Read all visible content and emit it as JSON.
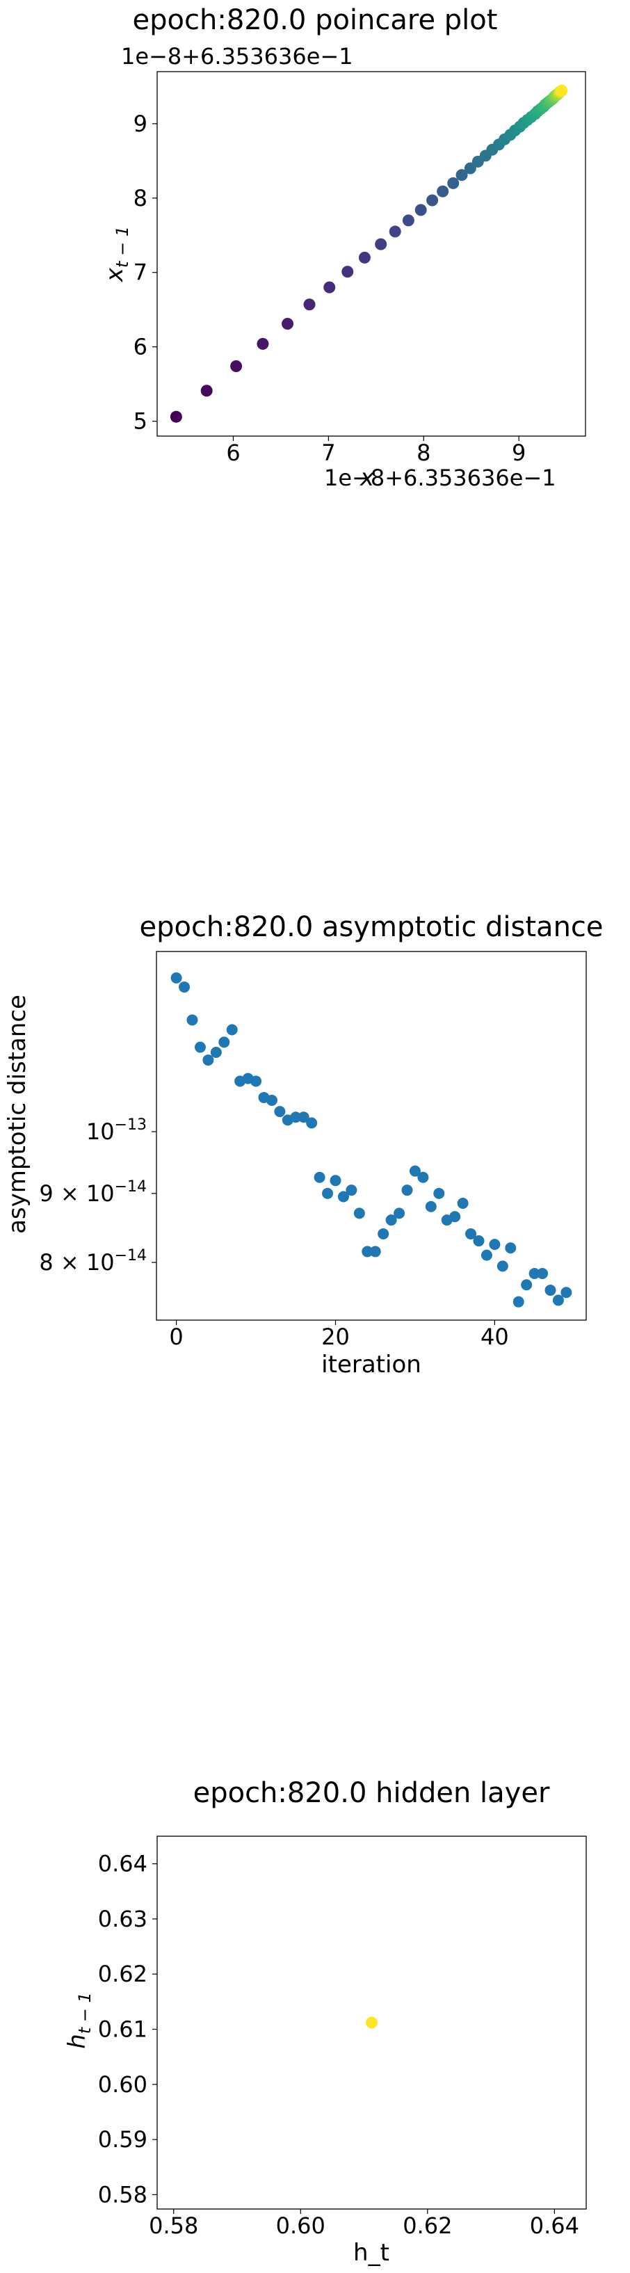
{
  "chart_data": [
    {
      "type": "scatter",
      "title": "epoch:820.0 poincare plot",
      "xlabel": "x_t",
      "ylabel": "x_{t-1}",
      "offset_text_x": "1e−8+6.353636e−1",
      "offset_text_y": "1e−8+6.353636e−1",
      "xlim": [
        5.2,
        9.7
      ],
      "ylim": [
        4.8,
        9.7
      ],
      "xticks": [
        6,
        7,
        8,
        9
      ],
      "xtick_labels": [
        "6",
        "7",
        "8",
        "9"
      ],
      "yticks": [
        5,
        6,
        7,
        8,
        9
      ],
      "ytick_labels": [
        "5",
        "6",
        "7",
        "8",
        "9"
      ],
      "colormap": "viridis",
      "grid": false,
      "points": [
        [
          5.4,
          5.06
        ],
        [
          5.72,
          5.41
        ],
        [
          6.03,
          5.74
        ],
        [
          6.31,
          6.04
        ],
        [
          6.57,
          6.31
        ],
        [
          6.8,
          6.57
        ],
        [
          7.01,
          6.8
        ],
        [
          7.2,
          7.01
        ],
        [
          7.38,
          7.2
        ],
        [
          7.55,
          7.38
        ],
        [
          7.7,
          7.55
        ],
        [
          7.84,
          7.7
        ],
        [
          7.97,
          7.84
        ],
        [
          8.09,
          7.97
        ],
        [
          8.2,
          8.09
        ],
        [
          8.31,
          8.2
        ],
        [
          8.4,
          8.31
        ],
        [
          8.49,
          8.4
        ],
        [
          8.57,
          8.49
        ],
        [
          8.65,
          8.57
        ],
        [
          8.72,
          8.65
        ],
        [
          8.79,
          8.72
        ],
        [
          8.85,
          8.79
        ],
        [
          8.91,
          8.85
        ],
        [
          8.96,
          8.91
        ],
        [
          9.01,
          8.96
        ],
        [
          9.05,
          9.01
        ],
        [
          9.09,
          9.05
        ],
        [
          9.13,
          9.09
        ],
        [
          9.17,
          9.13
        ],
        [
          9.2,
          9.17
        ],
        [
          9.23,
          9.2
        ],
        [
          9.26,
          9.23
        ],
        [
          9.28,
          9.26
        ],
        [
          9.3,
          9.28
        ],
        [
          9.32,
          9.3
        ],
        [
          9.34,
          9.32
        ],
        [
          9.36,
          9.34
        ],
        [
          9.37,
          9.36
        ],
        [
          9.38,
          9.37
        ],
        [
          9.39,
          9.38
        ],
        [
          9.4,
          9.39
        ],
        [
          9.41,
          9.4
        ],
        [
          9.42,
          9.41
        ],
        [
          9.425,
          9.42
        ],
        [
          9.43,
          9.425
        ],
        [
          9.435,
          9.43
        ],
        [
          9.44,
          9.435
        ],
        [
          9.445,
          9.44
        ],
        [
          9.45,
          9.445
        ]
      ]
    },
    {
      "type": "scatter",
      "title": "epoch:820.0 asymptotic distance",
      "xlabel": "iteration",
      "ylabel": "asymptotic distance",
      "yscale": "log",
      "xlim": [
        -2.5,
        51.5
      ],
      "ylim": [
        7.25e-14,
        1.36e-13
      ],
      "xticks": [
        0,
        20,
        40
      ],
      "xtick_labels": [
        "0",
        "20",
        "40"
      ],
      "yticks": [
        1e-13,
        9e-14,
        8e-14
      ],
      "ytick_labels": [
        {
          "base": "10",
          "exp": "−13"
        },
        {
          "base": "9 × 10",
          "exp": "−14"
        },
        {
          "base": "8 × 10",
          "exp": "−14"
        }
      ],
      "color": "#1f77b4",
      "grid": false,
      "x": [
        0,
        1,
        2,
        3,
        4,
        5,
        6,
        7,
        8,
        9,
        10,
        11,
        12,
        13,
        14,
        15,
        16,
        17,
        18,
        19,
        20,
        21,
        22,
        23,
        24,
        25,
        26,
        27,
        28,
        29,
        30,
        31,
        32,
        33,
        34,
        35,
        36,
        37,
        38,
        39,
        40,
        41,
        42,
        43,
        44,
        45,
        46,
        47,
        48,
        49
      ],
      "y": [
        1.3e-13,
        1.28e-13,
        1.21e-13,
        1.155e-13,
        1.13e-13,
        1.145e-13,
        1.165e-13,
        1.19e-13,
        1.09e-13,
        1.095e-13,
        1.09e-13,
        1.06e-13,
        1.055e-13,
        1.035e-13,
        1.02e-13,
        1.025e-13,
        1.025e-13,
        1.015e-13,
        9.25e-14,
        9e-14,
        9.2e-14,
        8.95e-14,
        9.05e-14,
        8.7e-14,
        8.15e-14,
        8.15e-14,
        8.4e-14,
        8.6e-14,
        8.7e-14,
        9.05e-14,
        9.35e-14,
        9.25e-14,
        8.8e-14,
        9e-14,
        8.6e-14,
        8.65e-14,
        8.85e-14,
        8.4e-14,
        8.3e-14,
        8.1e-14,
        8.25e-14,
        7.95e-14,
        8.2e-14,
        7.48e-14,
        7.7e-14,
        7.85e-14,
        7.85e-14,
        7.63e-14,
        7.5e-14,
        7.6e-14
      ]
    },
    {
      "type": "scatter",
      "title": "epoch:820.0 hidden layer",
      "xlabel": "h_t",
      "ylabel": "h_{t-1}",
      "xlim": [
        0.5774,
        0.645
      ],
      "ylim": [
        0.5774,
        0.645
      ],
      "xticks": [
        0.58,
        0.6,
        0.62,
        0.64
      ],
      "xtick_labels": [
        "0.58",
        "0.60",
        "0.62",
        "0.64"
      ],
      "yticks": [
        0.58,
        0.59,
        0.6,
        0.61,
        0.62,
        0.63,
        0.64
      ],
      "ytick_labels": [
        "0.58",
        "0.59",
        "0.60",
        "0.61",
        "0.62",
        "0.63",
        "0.64"
      ],
      "color": "#fde725",
      "grid": false,
      "points": [
        [
          0.6112,
          0.6112
        ]
      ]
    }
  ]
}
